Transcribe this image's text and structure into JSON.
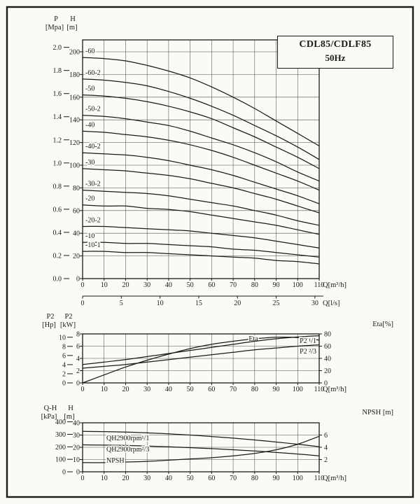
{
  "ink": "#1a1a1a",
  "bg": "#fbfaf5",
  "title_box": {
    "line1": "CDL85/CDLF85",
    "line2": "50Hz"
  },
  "chart_data": [
    {
      "id": "qh",
      "type": "line",
      "title": "CDL85/CDLF85 50Hz",
      "x_axis": {
        "label": "Q[m³/h]",
        "ticks": [
          0,
          10,
          20,
          30,
          40,
          50,
          60,
          70,
          80,
          90,
          100,
          110
        ]
      },
      "x_axis2": {
        "label": "Q[l/s]",
        "ticks": [
          0,
          5,
          10,
          15,
          20,
          25,
          30
        ],
        "to_primary": 3.6
      },
      "y_axis_primary": {
        "label_top": "H",
        "label_unit": "[m]",
        "ticks": [
          0,
          20,
          40,
          60,
          80,
          100,
          120,
          140,
          160,
          180,
          200
        ]
      },
      "y_axis_secondary": {
        "label_top": "P",
        "label_unit": "[Mpa]",
        "ticks": [
          "0.0",
          "0.2",
          "0.4",
          "0.6",
          "0.8",
          "1.0",
          "1.2",
          "1.4",
          "1.6",
          "1.8",
          "2.0"
        ],
        "to_primary": 101.97
      },
      "x": [
        0,
        10,
        20,
        30,
        40,
        50,
        60,
        70,
        80,
        90,
        100,
        110
      ],
      "series": [
        {
          "name": "-60",
          "values": [
            195,
            194,
            192,
            188,
            183,
            177,
            169,
            160,
            150,
            139,
            128,
            117
          ]
        },
        {
          "name": "-60-2",
          "values": [
            176,
            175,
            173,
            170,
            165,
            159,
            152,
            144,
            135,
            126,
            116,
            105
          ]
        },
        {
          "name": "-50",
          "values": [
            162,
            161,
            159,
            156,
            152,
            147,
            141,
            133,
            125,
            116,
            107,
            97
          ]
        },
        {
          "name": "-50-2",
          "values": [
            144,
            143,
            141,
            138,
            135,
            130,
            124,
            118,
            111,
            103,
            94,
            86
          ]
        },
        {
          "name": "-40",
          "values": [
            130,
            129,
            127,
            125,
            122,
            118,
            113,
            107,
            100,
            93,
            86,
            78
          ]
        },
        {
          "name": "-40-2",
          "values": [
            111,
            110,
            109,
            107,
            104,
            100,
            96,
            91,
            85,
            79,
            73,
            66
          ]
        },
        {
          "name": "-30",
          "values": [
            97,
            96,
            95,
            93,
            91,
            88,
            84,
            80,
            75,
            70,
            64,
            58
          ]
        },
        {
          "name": "-30-2",
          "values": [
            78,
            77,
            76,
            75,
            73,
            70,
            67,
            64,
            60,
            56,
            51,
            47
          ]
        },
        {
          "name": "-20",
          "values": [
            65,
            64,
            64,
            62,
            61,
            59,
            56,
            53,
            50,
            47,
            43,
            39
          ]
        },
        {
          "name": "-20-2",
          "values": [
            46,
            46,
            45,
            44,
            43,
            42,
            40,
            38,
            36,
            33,
            30,
            27
          ]
        },
        {
          "name": "-10",
          "values": [
            32,
            32,
            31,
            31,
            30,
            29,
            28,
            26,
            25,
            23,
            21,
            19
          ]
        },
        {
          "name": "-10-1",
          "values": [
            24,
            24,
            23,
            23,
            22,
            21,
            20,
            19,
            18,
            16,
            15,
            13
          ]
        }
      ]
    },
    {
      "id": "power",
      "type": "line",
      "x_axis": {
        "label": "Q[m³/h]",
        "ticks": [
          0,
          10,
          20,
          30,
          40,
          50,
          60,
          70,
          80,
          90,
          100,
          110
        ]
      },
      "y_axis_primary": {
        "label_top": "P2",
        "label_unit": "[kW]",
        "ticks": [
          0,
          2,
          4,
          6,
          8
        ]
      },
      "y_axis_secondary": {
        "label_top": "P2",
        "label_unit": "[Hp]",
        "ticks": [
          0,
          2,
          4,
          6,
          8,
          10
        ],
        "to_primary": 0.7457
      },
      "y_axis_right": {
        "label": "Eta[%]",
        "ticks": [
          0,
          20,
          40,
          60,
          80
        ]
      },
      "x": [
        0,
        10,
        20,
        30,
        40,
        50,
        60,
        70,
        80,
        90,
        100,
        110
      ],
      "series": [
        {
          "name": "Eta",
          "axis": "right",
          "values": [
            0,
            13,
            26,
            37,
            47,
            56,
            63,
            68,
            72,
            74.5,
            74,
            70
          ]
        },
        {
          "name": "P2 ¹/1",
          "values": [
            3.0,
            3.4,
            3.8,
            4.3,
            4.8,
            5.3,
            5.8,
            6.3,
            6.8,
            7.2,
            7.5,
            7.7
          ]
        },
        {
          "name": "P2 ²/3",
          "values": [
            2.4,
            2.7,
            3.0,
            3.4,
            3.8,
            4.2,
            4.6,
            5.0,
            5.4,
            5.7,
            6.0,
            6.2
          ]
        }
      ]
    },
    {
      "id": "npsh",
      "type": "line",
      "x_axis": {
        "label": "Q[m³/h]",
        "ticks": [
          0,
          10,
          20,
          30,
          40,
          50,
          60,
          70,
          80,
          90,
          100,
          110
        ]
      },
      "y_axis_primary": {
        "label_top": "H",
        "label_unit": "[m]",
        "ticks": [
          0,
          10,
          20,
          30,
          40
        ]
      },
      "y_axis_secondary": {
        "label_top": "Q-H",
        "label_unit": "[kPa]",
        "ticks": [
          0,
          100,
          200,
          300,
          400
        ],
        "to_primary": 0.10197
      },
      "y_axis_right": {
        "label": "NPSH [m]",
        "ticks": [
          2,
          4,
          6
        ]
      },
      "x": [
        0,
        10,
        20,
        30,
        40,
        50,
        60,
        70,
        80,
        90,
        100,
        110
      ],
      "series": [
        {
          "name": "QH2900rpm¹/1",
          "values": [
            33,
            32.8,
            32.4,
            31.8,
            31,
            30,
            28.8,
            27.5,
            26,
            24.3,
            22.5,
            20.5
          ]
        },
        {
          "name": "QH2900rpm²/3",
          "values": [
            22,
            21.8,
            21.5,
            21,
            20.4,
            19.7,
            18.9,
            18,
            17,
            15.8,
            14.5,
            13
          ]
        },
        {
          "name": "NPSH",
          "axis": "right",
          "values": [
            1.5,
            1.5,
            1.6,
            1.7,
            1.9,
            2.1,
            2.3,
            2.6,
            3.0,
            3.6,
            4.5,
            5.8
          ]
        }
      ]
    }
  ]
}
